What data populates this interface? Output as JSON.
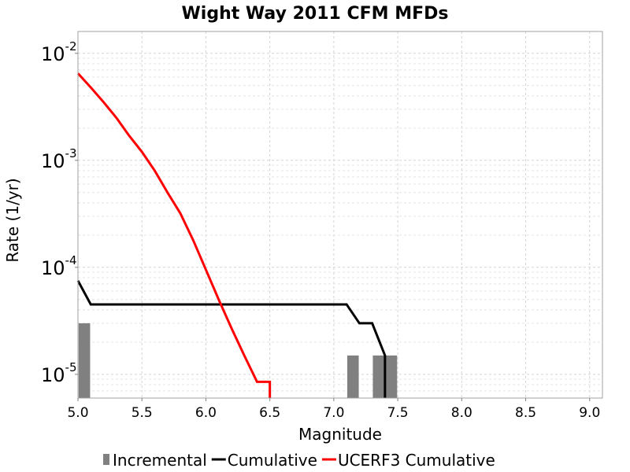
{
  "chart_data": {
    "type": "line",
    "title": "Wight Way 2011 CFM MFDs",
    "xlabel": "Magnitude",
    "ylabel": "Rate (1/yr)",
    "xlim": [
      5.0,
      9.1
    ],
    "ylim": [
      6e-06,
      0.016
    ],
    "yscale": "log",
    "grid": true,
    "legend": "bottom",
    "xticks": [
      "5.0",
      "5.5",
      "6.0",
      "6.5",
      "7.0",
      "7.5",
      "8.0",
      "8.5",
      "9.0"
    ],
    "yticks": [
      {
        "value": 0.01,
        "base": "10",
        "exp": "-2"
      },
      {
        "value": 0.001,
        "base": "10",
        "exp": "-3"
      },
      {
        "value": 0.0001,
        "base": "10",
        "exp": "-4"
      },
      {
        "value": 1e-05,
        "base": "10",
        "exp": "-5"
      }
    ],
    "series": [
      {
        "name": "Incremental",
        "kind": "bar",
        "color": "#808080",
        "bar_width": 0.09,
        "x": [
          5.05,
          7.15,
          7.35,
          7.45
        ],
        "y": [
          3e-05,
          1.5e-05,
          1.5e-05,
          1.5e-05
        ]
      },
      {
        "name": "Cumulative",
        "kind": "line",
        "color": "#000000",
        "x": [
          5.0,
          5.1,
          7.1,
          7.2,
          7.3,
          7.4,
          7.4
        ],
        "y": [
          7.5e-05,
          4.5e-05,
          4.5e-05,
          3e-05,
          3e-05,
          1.5e-05,
          6e-06
        ]
      },
      {
        "name": "UCERF3 Cumulative",
        "kind": "line",
        "color": "#ff0000",
        "x": [
          5.0,
          5.1,
          5.2,
          5.3,
          5.4,
          5.5,
          5.6,
          5.7,
          5.8,
          5.9,
          6.0,
          6.1,
          6.2,
          6.3,
          6.4,
          6.5,
          6.5
        ],
        "y": [
          0.0065,
          0.0048,
          0.0035,
          0.0025,
          0.0017,
          0.0012,
          0.0008,
          0.0005,
          0.00032,
          0.00018,
          9.5e-05,
          5e-05,
          2.7e-05,
          1.5e-05,
          8.5e-06,
          8.5e-06,
          6e-06
        ]
      }
    ]
  }
}
